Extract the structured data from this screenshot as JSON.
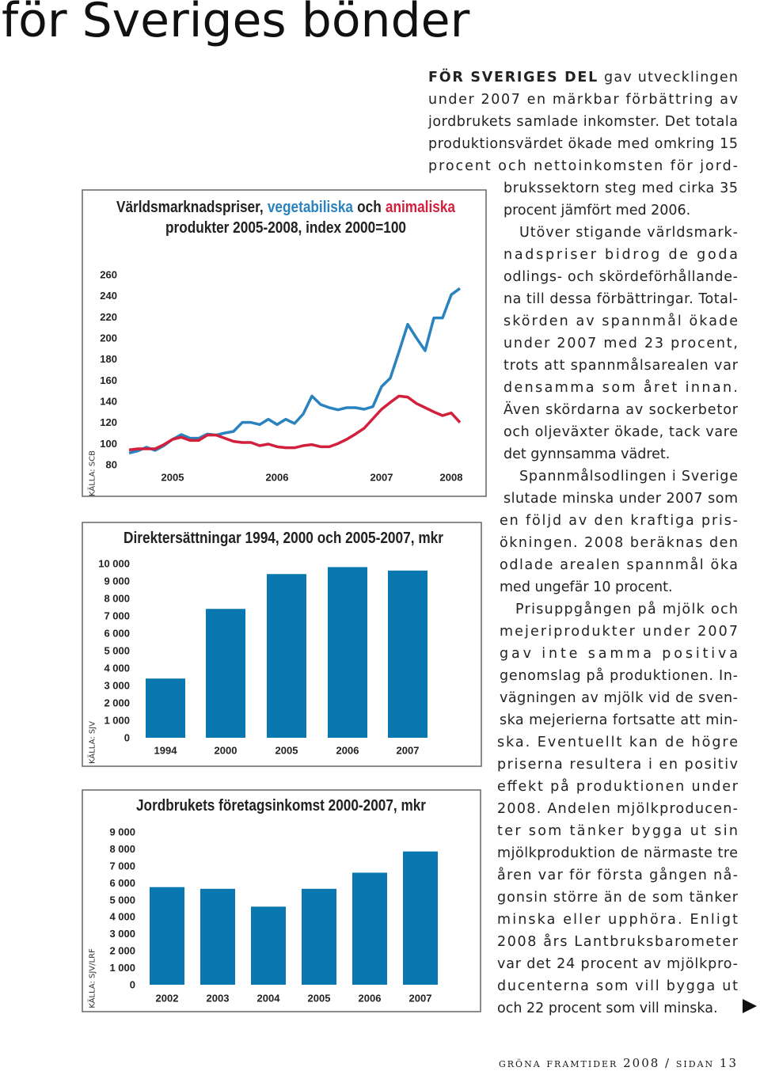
{
  "headline": "för Sveriges bönder",
  "chart_data": [
    {
      "type": "line",
      "title": [
        "Världsmarknadspriser,",
        "och",
        "produkter 2005-2008, index 2000=100"
      ],
      "source": "KÄLLA: SCB",
      "categories": [
        null,
        null,
        null,
        null,
        null,
        "2005",
        null,
        null,
        null,
        null,
        null,
        null,
        null,
        null,
        null,
        null,
        null,
        "2006",
        null,
        null,
        null,
        null,
        null,
        null,
        null,
        null,
        null,
        null,
        null,
        "2007",
        null,
        null,
        null,
        null,
        null,
        null,
        null,
        "2008",
        null
      ],
      "series": [
        {
          "name": "vegetabiliska",
          "color": "#2a82bf",
          "values": [
            91,
            93,
            96.5,
            93.5,
            98,
            104,
            108.5,
            105,
            105,
            109,
            108,
            110,
            111.5,
            120,
            120,
            118,
            123,
            118,
            123,
            119,
            128,
            145,
            137,
            134,
            132,
            134,
            134,
            132.5,
            135,
            154,
            162,
            187,
            213,
            200,
            188,
            219,
            219,
            241,
            247
          ]
        },
        {
          "name": "animaliska",
          "color": "#d2203c",
          "values": [
            94,
            95,
            95,
            95,
            99,
            104,
            106,
            103,
            103,
            108,
            108,
            105,
            102,
            101,
            101,
            98,
            99.5,
            97,
            96,
            96,
            98,
            99,
            97,
            97,
            100,
            104,
            109,
            114.5,
            123.5,
            132.5,
            139,
            145,
            144,
            138,
            134,
            130,
            126.5,
            129,
            120
          ]
        }
      ],
      "ylim": [
        80,
        260
      ],
      "yticks": [
        80,
        100,
        120,
        140,
        160,
        180,
        200,
        220,
        240,
        260
      ]
    },
    {
      "type": "bar",
      "title": "Direktersättningar 1994, 2000 och 2005-2007, mkr",
      "source": "KÄLLA: SJV",
      "categories": [
        "1994",
        "2000",
        "2005",
        "2006",
        "2007"
      ],
      "values": [
        3400,
        7400,
        9400,
        9800,
        9600
      ],
      "color": "#0a78b0",
      "ylim": [
        0,
        10000
      ],
      "yticks": [
        0,
        {
          "value": 1000,
          "label": "1 000"
        },
        {
          "value": 2000,
          "label": "2 000"
        },
        {
          "value": 3000,
          "label": "3 000"
        },
        {
          "value": 4000,
          "label": "4 000"
        },
        {
          "value": 5000,
          "label": "5 000"
        },
        {
          "value": 6000,
          "label": "6 000"
        },
        {
          "value": 7000,
          "label": "7 000"
        },
        {
          "value": 8000,
          "label": "8 000"
        },
        {
          "value": 9000,
          "label": "9 000"
        },
        {
          "value": 10000,
          "label": "10 000"
        }
      ]
    },
    {
      "type": "bar",
      "title": "Jordbrukets företagsinkomst 2000-2007, mkr",
      "source": "KÄLLA: SJV/LRF",
      "categories": [
        "2002",
        "2003",
        "2004",
        "2005",
        "2006",
        "2007"
      ],
      "values": [
        5750,
        5650,
        4600,
        5650,
        6600,
        7850
      ],
      "color": "#0a78b0",
      "ylim": [
        0,
        9000
      ],
      "yticks": [
        0,
        {
          "value": 1000,
          "label": "1 000"
        },
        {
          "value": 2000,
          "label": "2 000"
        },
        {
          "value": 3000,
          "label": "3 000"
        },
        {
          "value": 4000,
          "label": "4 000"
        },
        {
          "value": 5000,
          "label": "5 000"
        },
        {
          "value": 6000,
          "label": "6 000"
        },
        {
          "value": 7000,
          "label": "7 000"
        },
        {
          "value": 8000,
          "label": "8 000"
        },
        {
          "value": 9000,
          "label": "9 000"
        }
      ]
    }
  ],
  "article": {
    "lead": "FÖR SVERIGES DEL",
    "paragraphs": [
      [
        "gav utvecklingen",
        "under 2007 en märkbar förbättring av",
        "jordbrukets samlade inkomster. Det totala",
        "produktionsvärdet ökade med omkring 15",
        "procent och nettoinkomsten för jord-",
        "brukssektorn steg med cirka 35",
        "procent jämfört med 2006."
      ],
      [
        "Utöver stigande världsmark-",
        "nadspriser bidrog de goda",
        "odlings- och skördeförhållande-",
        "na till dessa förbättringar. Total-",
        "skörden av spannmål ökade",
        "under 2007 med 23 procent,",
        "trots att spannmålsarealen var",
        "densamma som året innan.",
        "Även skördarna av sockerbetor",
        "och oljeväxter ökade, tack vare",
        "det gynnsamma vädret."
      ],
      [
        "Spannmålsodlingen i Sverige",
        "slutade minska under 2007 som",
        "en följd av den kraftiga pris-",
        "ökningen. 2008 beräknas den",
        "odlade arealen spannmål öka",
        "med ungefär 10 procent."
      ],
      [
        "Prisuppgången på mjölk och",
        "mejeriprodukter under 2007",
        "gav inte samma positiva",
        "genomslag på produktionen. In-",
        "vägningen av mjölk vid de sven-",
        "ska mejerierna fortsatte att min-",
        "ska. Eventuellt kan de högre",
        "priserna resultera i en positiv",
        "effekt på produktionen under",
        "2008. Andelen mjölkproducen-",
        "ter som tänker bygga ut sin",
        "mjölkproduktion de närmaste tre",
        "åren var för första gången nå-",
        "gonsin större än de som tänker",
        "minska eller upphöra. Enligt",
        "2008 års Lantbruksbarometer",
        "var det 24 procent av mjölkpro-",
        "ducenterna som vill bygga ut",
        "och 22 procent som vill minska."
      ]
    ]
  },
  "footer": "gröna framtider 2008 / sidan 13"
}
